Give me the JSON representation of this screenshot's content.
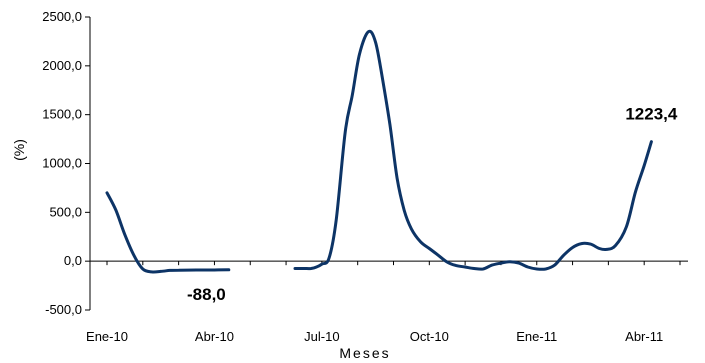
{
  "chart_data": {
    "type": "line",
    "title": "",
    "xlabel": "Meses",
    "ylabel": "(%)",
    "ylim": [
      -500,
      2500
    ],
    "yticks": [
      -500,
      0,
      500,
      1000,
      1500,
      2000,
      2500
    ],
    "ytick_labels": [
      "-500,0",
      "0,0",
      "500,0",
      "1000,0",
      "1500,0",
      "2000,0",
      "2500,0"
    ],
    "xlim": [
      0,
      16
    ],
    "xticks": [
      0,
      3,
      6,
      9,
      12,
      15
    ],
    "xtick_labels": [
      "Ene-10",
      "Abr-10",
      "Jul-10",
      "Oct-10",
      "Ene-11",
      "Abr-11"
    ],
    "line_color": "#0d3466",
    "segments": [
      [
        [
          0.0,
          700
        ],
        [
          0.25,
          520
        ],
        [
          0.5,
          270
        ],
        [
          0.75,
          60
        ],
        [
          1.0,
          -80
        ],
        [
          1.25,
          -110
        ],
        [
          1.5,
          -105
        ],
        [
          1.75,
          -95
        ],
        [
          2.0,
          -92
        ],
        [
          2.5,
          -90
        ],
        [
          3.0,
          -90
        ],
        [
          3.4,
          -88
        ]
      ],
      [
        [
          5.25,
          -75
        ],
        [
          5.5,
          -75
        ],
        [
          5.7,
          -75
        ],
        [
          5.85,
          -60
        ],
        [
          6.0,
          -30
        ],
        [
          6.2,
          30
        ],
        [
          6.4,
          420
        ],
        [
          6.65,
          1320
        ],
        [
          6.85,
          1700
        ],
        [
          7.05,
          2120
        ],
        [
          7.3,
          2350
        ],
        [
          7.5,
          2240
        ],
        [
          7.7,
          1850
        ],
        [
          7.9,
          1400
        ],
        [
          8.1,
          850
        ],
        [
          8.3,
          520
        ],
        [
          8.5,
          330
        ],
        [
          8.75,
          200
        ],
        [
          9.0,
          130
        ],
        [
          9.25,
          60
        ],
        [
          9.5,
          -10
        ],
        [
          9.75,
          -45
        ],
        [
          10.0,
          -60
        ],
        [
          10.25,
          -75
        ],
        [
          10.5,
          -80
        ],
        [
          10.75,
          -40
        ],
        [
          11.0,
          -20
        ],
        [
          11.25,
          -5
        ],
        [
          11.5,
          -20
        ],
        [
          11.75,
          -60
        ],
        [
          12.0,
          -80
        ],
        [
          12.25,
          -80
        ],
        [
          12.5,
          -40
        ],
        [
          12.75,
          60
        ],
        [
          13.0,
          140
        ],
        [
          13.25,
          180
        ],
        [
          13.5,
          175
        ],
        [
          13.75,
          130
        ],
        [
          13.95,
          120
        ],
        [
          14.2,
          160
        ],
        [
          14.5,
          350
        ],
        [
          14.75,
          700
        ],
        [
          15.0,
          980
        ],
        [
          15.2,
          1223.4
        ]
      ]
    ],
    "annotations": [
      {
        "text": "-88,0",
        "x": 3.4,
        "y": -88
      },
      {
        "text": "1223,4",
        "x": 15.2,
        "y": 1223.4
      }
    ],
    "grid": false,
    "legend": "none"
  }
}
